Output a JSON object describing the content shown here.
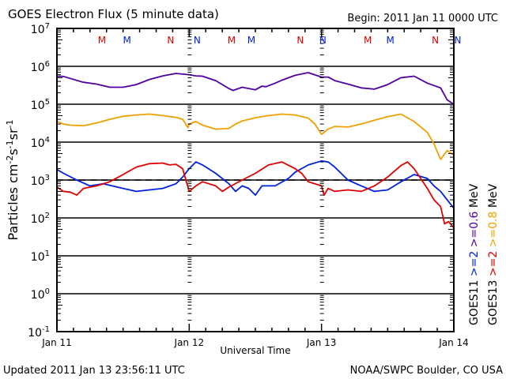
{
  "chart_data": {
    "type": "line",
    "title": "GOES Electron Flux (5 minute data)",
    "begin_label": "Begin: 2011 Jan 11 0000 UTC",
    "xlabel": "Universal Time",
    "ylabel": "Particles cm⁻²s⁻¹sr⁻¹",
    "yscale": "log",
    "ylim": [
      0.1,
      10000000
    ],
    "xlim_days": [
      0,
      3
    ],
    "x_ticks": [
      {
        "day": 0,
        "label": "Jan 11"
      },
      {
        "day": 1,
        "label": "Jan 12"
      },
      {
        "day": 2,
        "label": "Jan 13"
      },
      {
        "day": 3,
        "label": "Jan 14"
      }
    ],
    "y_ticks": [
      {
        "exp": 7,
        "base": "10",
        "sup": "7"
      },
      {
        "exp": 6,
        "base": "10",
        "sup": "6"
      },
      {
        "exp": 5,
        "base": "10",
        "sup": "5"
      },
      {
        "exp": 4,
        "base": "10",
        "sup": "4"
      },
      {
        "exp": 3,
        "base": "10",
        "sup": "3"
      },
      {
        "exp": 2,
        "base": "10",
        "sup": "2"
      },
      {
        "exp": 1,
        "base": "10",
        "sup": "1"
      },
      {
        "exp": 0,
        "base": "10",
        "sup": "0"
      },
      {
        "exp": -1,
        "base": "10",
        "sup": "-1"
      }
    ],
    "threshold": {
      "value": 1000,
      "style": "dashed"
    },
    "grid": "horizontal decade lines",
    "markers": [
      {
        "day": 0.34,
        "label": "M",
        "color": "#e00000"
      },
      {
        "day": 0.53,
        "label": "M",
        "color": "#0020e0"
      },
      {
        "day": 0.86,
        "label": "N",
        "color": "#e00000"
      },
      {
        "day": 1.06,
        "label": "N",
        "color": "#0020e0"
      },
      {
        "day": 1.32,
        "label": "M",
        "color": "#e00000"
      },
      {
        "day": 1.47,
        "label": "M",
        "color": "#0020e0"
      },
      {
        "day": 1.84,
        "label": "N",
        "color": "#e00000"
      },
      {
        "day": 2.01,
        "label": "N",
        "color": "#0020e0"
      },
      {
        "day": 2.35,
        "label": "M",
        "color": "#e00000"
      },
      {
        "day": 2.52,
        "label": "M",
        "color": "#0020e0"
      },
      {
        "day": 2.86,
        "label": "N",
        "color": "#e00000"
      },
      {
        "day": 3.03,
        "label": "N",
        "color": "#0020e0"
      }
    ],
    "legend": {
      "placement": "right",
      "columns": [
        {
          "satellite": "GOES11",
          "entries": [
            {
              "text": ">=2",
              "color": "#0020e0"
            },
            {
              "text": ">=0.6",
              "color": "#5000a0"
            },
            {
              "text": "MeV",
              "color": "#000000"
            }
          ]
        },
        {
          "satellite": "GOES13",
          "entries": [
            {
              "text": ">=2",
              "color": "#e00000"
            },
            {
              "text": ">=0.8",
              "color": "#f0a000"
            },
            {
              "text": "MeV",
              "color": "#000000"
            }
          ]
        }
      ]
    },
    "series": [
      {
        "name": "GOES11 >=0.6 MeV",
        "color": "#5000a0",
        "x": [
          0,
          0.05,
          0.1,
          0.2,
          0.3,
          0.4,
          0.5,
          0.6,
          0.7,
          0.8,
          0.9,
          1.0,
          1.05,
          1.1,
          1.2,
          1.3,
          1.33,
          1.4,
          1.5,
          1.55,
          1.58,
          1.65,
          1.7,
          1.8,
          1.9,
          2.0,
          2.05,
          2.1,
          2.2,
          2.3,
          2.4,
          2.5,
          2.6,
          2.7,
          2.8,
          2.9,
          2.95,
          3.0
        ],
        "y": [
          550000,
          540000,
          480000,
          380000,
          340000,
          280000,
          280000,
          330000,
          450000,
          560000,
          650000,
          600000,
          560000,
          550000,
          420000,
          260000,
          230000,
          280000,
          240000,
          300000,
          290000,
          360000,
          430000,
          580000,
          680000,
          520000,
          520000,
          420000,
          340000,
          270000,
          250000,
          330000,
          500000,
          550000,
          360000,
          270000,
          130000,
          100000
        ]
      },
      {
        "name": "GOES13 >=0.8 MeV",
        "color": "#f0a000",
        "x": [
          0,
          0.05,
          0.1,
          0.2,
          0.3,
          0.4,
          0.5,
          0.6,
          0.7,
          0.8,
          0.9,
          0.95,
          0.99,
          1.0,
          1.05,
          1.1,
          1.2,
          1.3,
          1.35,
          1.4,
          1.5,
          1.6,
          1.7,
          1.8,
          1.9,
          1.95,
          2.0,
          2.05,
          2.1,
          2.2,
          2.3,
          2.4,
          2.5,
          2.6,
          2.7,
          2.8,
          2.85,
          2.9,
          2.95,
          3.0
        ],
        "y": [
          35000,
          30000,
          28000,
          27000,
          32000,
          40000,
          48000,
          52000,
          55000,
          50000,
          45000,
          40000,
          24000,
          30000,
          35000,
          28000,
          22000,
          23000,
          30000,
          36000,
          44000,
          50000,
          55000,
          52000,
          43000,
          30000,
          16000,
          22000,
          26000,
          25000,
          30000,
          38000,
          47000,
          55000,
          35000,
          18000,
          9000,
          3500,
          6000,
          4500
        ]
      },
      {
        "name": "GOES11 >=2 MeV",
        "color": "#0020e0",
        "x": [
          0,
          0.05,
          0.15,
          0.25,
          0.35,
          0.5,
          0.6,
          0.7,
          0.8,
          0.9,
          0.95,
          1.0,
          1.05,
          1.1,
          1.2,
          1.3,
          1.35,
          1.4,
          1.45,
          1.5,
          1.55,
          1.65,
          1.75,
          1.8,
          1.9,
          2.0,
          2.05,
          2.1,
          2.2,
          2.3,
          2.4,
          2.5,
          2.55,
          2.6,
          2.7,
          2.8,
          2.85,
          2.9,
          2.95,
          3.0
        ],
        "y": [
          1900,
          1500,
          1000,
          700,
          800,
          600,
          500,
          550,
          600,
          800,
          1200,
          2000,
          3000,
          2500,
          1500,
          800,
          500,
          700,
          600,
          400,
          700,
          700,
          1100,
          1600,
          2500,
          3200,
          3000,
          2200,
          1000,
          700,
          500,
          550,
          700,
          900,
          1400,
          1100,
          700,
          500,
          300,
          180
        ]
      },
      {
        "name": "GOES13 >=2 MeV",
        "color": "#e00000",
        "x": [
          0,
          0.05,
          0.1,
          0.15,
          0.2,
          0.3,
          0.4,
          0.5,
          0.6,
          0.7,
          0.8,
          0.85,
          0.9,
          0.95,
          1.0,
          1.05,
          1.1,
          1.2,
          1.25,
          1.3,
          1.4,
          1.5,
          1.6,
          1.7,
          1.8,
          1.85,
          1.9,
          2.0,
          2.02,
          2.05,
          2.1,
          2.2,
          2.3,
          2.4,
          2.5,
          2.6,
          2.65,
          2.7,
          2.8,
          2.85,
          2.9,
          2.93,
          2.96,
          3.0
        ],
        "y": [
          650,
          500,
          480,
          400,
          600,
          700,
          900,
          1400,
          2200,
          2700,
          2800,
          2500,
          2600,
          2000,
          500,
          700,
          900,
          700,
          500,
          650,
          1000,
          1500,
          2500,
          3000,
          2000,
          1500,
          900,
          700,
          400,
          600,
          500,
          550,
          500,
          700,
          1200,
          2400,
          3000,
          2000,
          600,
          300,
          200,
          70,
          80,
          55
        ]
      }
    ]
  },
  "footer": {
    "updated": "Updated 2011 Jan 13 23:56:11 UTC",
    "credit": "NOAA/SWPC Boulder, CO USA"
  },
  "colors": {
    "background": "#ffffff",
    "axes": "#000000"
  }
}
